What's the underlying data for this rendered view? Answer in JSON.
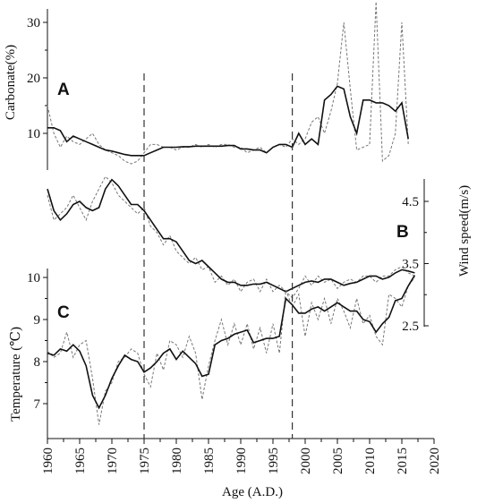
{
  "chart_data": [
    {
      "panel": "A",
      "type": "line",
      "title": "",
      "ylabel": "Carbonate(%)",
      "ylim": [
        0,
        30
      ],
      "yticks": [
        10,
        20,
        30
      ],
      "series": [
        {
          "style": "solid",
          "x": [
            1960,
            1961,
            1962,
            1963,
            1964,
            1965,
            1966,
            1967,
            1968,
            1969,
            1970,
            1971,
            1972,
            1973,
            1974,
            1975,
            1976,
            1977,
            1978,
            1979,
            1980,
            1981,
            1982,
            1983,
            1984,
            1985,
            1986,
            1987,
            1988,
            1989,
            1990,
            1991,
            1992,
            1993,
            1994,
            1995,
            1996,
            1997,
            1998,
            1999,
            2000,
            2001,
            2002,
            2003,
            2004,
            2005,
            2006,
            2007,
            2008,
            2009,
            2010,
            2011,
            2012,
            2013,
            2014,
            2015,
            2016
          ],
          "y": [
            11,
            11,
            10.5,
            8.5,
            9.5,
            9,
            8.5,
            8,
            7.5,
            7,
            6.8,
            6.5,
            6.2,
            6,
            6,
            6,
            6.5,
            7,
            7.5,
            7.5,
            7.5,
            7.6,
            7.6,
            7.7,
            7.7,
            7.7,
            7.7,
            7.7,
            7.8,
            7.8,
            7.2,
            7.2,
            7,
            7,
            6.5,
            7.5,
            8,
            8,
            7.5,
            10,
            8,
            9,
            8,
            16,
            17,
            18.5,
            18,
            13,
            10,
            16,
            16,
            15.5,
            15.5,
            15,
            14,
            15.5,
            9
          ]
        },
        {
          "style": "dashed",
          "x": [
            1960,
            1961,
            1962,
            1963,
            1964,
            1965,
            1966,
            1967,
            1968,
            1969,
            1970,
            1971,
            1972,
            1973,
            1974,
            1975,
            1976,
            1977,
            1978,
            1979,
            1980,
            1981,
            1982,
            1983,
            1984,
            1985,
            1986,
            1987,
            1988,
            1989,
            1990,
            1991,
            1992,
            1993,
            1994,
            1995,
            1996,
            1997,
            1998,
            1999,
            2000,
            2001,
            2002,
            2003,
            2004,
            2005,
            2006,
            2007,
            2008,
            2009,
            2010,
            2011,
            2012,
            2013,
            2014,
            2015,
            2016
          ],
          "y": [
            15,
            10,
            7.5,
            9.5,
            8.5,
            8,
            9,
            10,
            8,
            7,
            6.5,
            6,
            5,
            4.5,
            5,
            6.5,
            8,
            8,
            7.5,
            7.5,
            7,
            7.5,
            7.5,
            8,
            7.5,
            8,
            7.5,
            8,
            8,
            7.5,
            7.5,
            6.5,
            7,
            7.5,
            6.5,
            7.5,
            8,
            7.5,
            9,
            8,
            9,
            12,
            13,
            10,
            14,
            19,
            30,
            18,
            7,
            7.5,
            8,
            35,
            5,
            6,
            10,
            30,
            8
          ]
        }
      ]
    },
    {
      "panel": "B",
      "type": "line",
      "title": "",
      "ylabel": "Wind speed(m/s)",
      "ylim": [
        2.5,
        5
      ],
      "yticks": [
        2.5,
        3.5,
        4.5
      ],
      "series": [
        {
          "style": "solid",
          "x": [
            1960,
            1961,
            1962,
            1963,
            1964,
            1965,
            1966,
            1967,
            1968,
            1969,
            1970,
            1971,
            1972,
            1973,
            1974,
            1975,
            1976,
            1977,
            1978,
            1979,
            1980,
            1981,
            1982,
            1983,
            1984,
            1985,
            1986,
            1987,
            1988,
            1989,
            1990,
            1991,
            1992,
            1993,
            1994,
            1995,
            1996,
            1997,
            1998,
            1999,
            2000,
            2001,
            2002,
            2003,
            2004,
            2005,
            2006,
            2007,
            2008,
            2009,
            2010,
            2011,
            2012,
            2013,
            2014,
            2015,
            2016,
            2017
          ],
          "y": [
            4.7,
            4.35,
            4.2,
            4.3,
            4.45,
            4.5,
            4.4,
            4.35,
            4.4,
            4.7,
            4.85,
            4.75,
            4.6,
            4.45,
            4.45,
            4.35,
            4.2,
            4.05,
            3.9,
            3.9,
            3.85,
            3.7,
            3.55,
            3.5,
            3.55,
            3.45,
            3.35,
            3.25,
            3.2,
            3.2,
            3.15,
            3.15,
            3.17,
            3.17,
            3.2,
            3.15,
            3.1,
            3.05,
            3.1,
            3.15,
            3.2,
            3.22,
            3.2,
            3.25,
            3.25,
            3.2,
            3.15,
            3.18,
            3.2,
            3.25,
            3.3,
            3.3,
            3.25,
            3.28,
            3.35,
            3.4,
            3.38,
            3.35
          ]
        },
        {
          "style": "dashed",
          "x": [
            1960,
            1961,
            1962,
            1963,
            1964,
            1965,
            1966,
            1967,
            1968,
            1969,
            1970,
            1971,
            1972,
            1973,
            1974,
            1975,
            1976,
            1977,
            1978,
            1979,
            1980,
            1981,
            1982,
            1983,
            1984,
            1985,
            1986,
            1987,
            1988,
            1989,
            1990,
            1991,
            1992,
            1993,
            1994,
            1995,
            1996,
            1997,
            1998,
            1999,
            2000,
            2001,
            2002,
            2003,
            2004,
            2005,
            2006,
            2007,
            2008,
            2009,
            2010,
            2011,
            2012,
            2013,
            2014,
            2015,
            2016,
            2017
          ],
          "y": [
            4.6,
            4.2,
            4.3,
            4.4,
            4.6,
            4.4,
            4.2,
            4.5,
            4.7,
            4.9,
            4.8,
            4.6,
            4.5,
            4.4,
            4.3,
            4.4,
            4.1,
            4,
            3.8,
            3.95,
            3.7,
            3.6,
            3.5,
            3.6,
            3.4,
            3.45,
            3.2,
            3.3,
            3.15,
            3.25,
            3.05,
            3.2,
            3.25,
            3.05,
            3.25,
            3.05,
            3.15,
            3.05,
            2.95,
            3.1,
            3.3,
            3.15,
            3.3,
            3.2,
            3.25,
            3.1,
            3.2,
            3.25,
            3.2,
            3.3,
            3.3,
            3.2,
            3.3,
            3.3,
            3.4,
            3.45,
            3.35,
            3.3
          ]
        }
      ]
    },
    {
      "panel": "C",
      "type": "line",
      "title": "",
      "xlabel": "Age (A.D.)",
      "ylabel": "Temperature (℃)",
      "xlim": [
        1960,
        2020
      ],
      "xticks": [
        1960,
        1965,
        1970,
        1975,
        1980,
        1985,
        1990,
        1995,
        2000,
        2005,
        2010,
        2015,
        2020
      ],
      "ylim": [
        6.5,
        10
      ],
      "yticks": [
        7,
        8,
        9,
        10
      ],
      "series": [
        {
          "style": "solid",
          "x": [
            1960,
            1961,
            1962,
            1963,
            1964,
            1965,
            1966,
            1967,
            1968,
            1969,
            1970,
            1971,
            1972,
            1973,
            1974,
            1975,
            1976,
            1977,
            1978,
            1979,
            1980,
            1981,
            1982,
            1983,
            1984,
            1985,
            1986,
            1987,
            1988,
            1989,
            1990,
            1991,
            1992,
            1993,
            1994,
            1995,
            1996,
            1997,
            1998,
            1999,
            2000,
            2001,
            2002,
            2003,
            2004,
            2005,
            2006,
            2007,
            2008,
            2009,
            2010,
            2011,
            2012,
            2013,
            2014,
            2015,
            2016,
            2017
          ],
          "y": [
            8.2,
            8.15,
            8.3,
            8.25,
            8.4,
            8.25,
            7.9,
            7.2,
            6.9,
            7.2,
            7.6,
            7.9,
            8.15,
            8.05,
            8,
            7.75,
            7.85,
            8,
            8.2,
            8.3,
            8.05,
            8.25,
            8.1,
            7.95,
            7.65,
            7.7,
            8.4,
            8.5,
            8.55,
            8.65,
            8.7,
            8.75,
            8.45,
            8.5,
            8.55,
            8.55,
            8.6,
            9.5,
            9.35,
            9.15,
            9.15,
            9.25,
            9.3,
            9.2,
            9.3,
            9.4,
            9.3,
            9.2,
            9.2,
            9,
            8.95,
            8.7,
            8.9,
            9.05,
            9.45,
            9.5,
            9.8,
            10.05
          ]
        },
        {
          "style": "dashed",
          "x": [
            1960,
            1961,
            1962,
            1963,
            1964,
            1965,
            1966,
            1967,
            1968,
            1969,
            1970,
            1971,
            1972,
            1973,
            1974,
            1975,
            1976,
            1977,
            1978,
            1979,
            1980,
            1981,
            1982,
            1983,
            1984,
            1985,
            1986,
            1987,
            1988,
            1989,
            1990,
            1991,
            1992,
            1993,
            1994,
            1995,
            1996,
            1997,
            1998,
            1999,
            2000,
            2001,
            2002,
            2003,
            2004,
            2005,
            2006,
            2007,
            2008,
            2009,
            2010,
            2011,
            2012,
            2013,
            2014,
            2015,
            2016,
            2017
          ],
          "y": [
            8.25,
            8.1,
            8.2,
            8.7,
            8.1,
            8.4,
            8.5,
            7.6,
            6.5,
            7.3,
            7.5,
            8,
            8.1,
            8.3,
            8.2,
            7.7,
            7.4,
            8.2,
            7.8,
            8.5,
            8.4,
            8.1,
            8.6,
            8.2,
            7.1,
            7.9,
            8.5,
            9,
            8.4,
            8.9,
            8.4,
            8.9,
            8.3,
            8.8,
            8.2,
            8.9,
            8.2,
            9.7,
            9.3,
            9.6,
            8.6,
            9.4,
            9,
            9.5,
            8.9,
            9.5,
            9.2,
            8.8,
            9.5,
            8.9,
            9.1,
            8.6,
            8.4,
            9.6,
            9.5,
            9.3,
            9.8,
            10
          ]
        }
      ]
    }
  ],
  "panel_letters": {
    "a": "A",
    "b": "B",
    "c": "C"
  },
  "markers": {
    "style": "dashed",
    "x": [
      1975,
      1998
    ]
  }
}
